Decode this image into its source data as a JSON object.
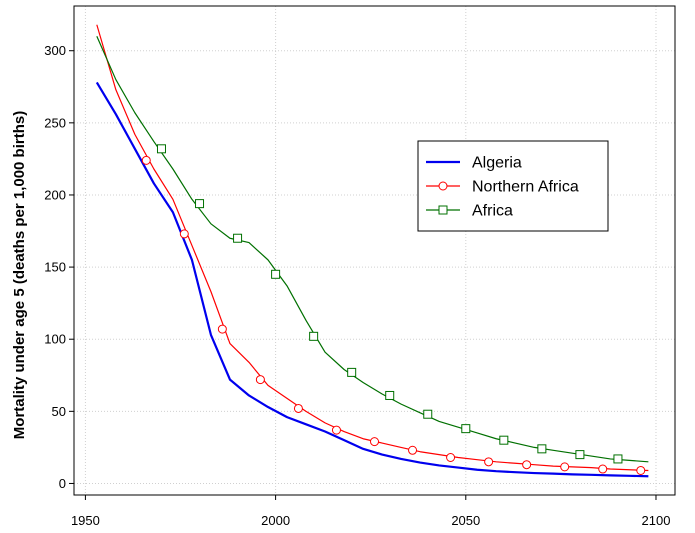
{
  "chart_data": {
    "type": "line",
    "title": "",
    "xlabel": "",
    "ylabel": "Mortality under age 5 (deaths per 1,000 births)",
    "xlim": [
      1947,
      2105
    ],
    "ylim": [
      -8,
      331
    ],
    "x_ticks": [
      1950,
      2000,
      2050,
      2100
    ],
    "y_ticks": [
      0,
      50,
      100,
      150,
      200,
      250,
      300
    ],
    "grid": true,
    "legend_position": "right",
    "series": [
      {
        "name": "Algeria",
        "color": "#0000ee",
        "marker": "none",
        "x": [
          1953,
          1958,
          1963,
          1968,
          1973,
          1978,
          1983,
          1988,
          1993,
          1998,
          2003,
          2008,
          2013,
          2018,
          2023,
          2028,
          2033,
          2038,
          2043,
          2048,
          2053,
          2058,
          2063,
          2068,
          2073,
          2078,
          2083,
          2088,
          2093,
          2098
        ],
        "values": [
          278,
          256,
          232,
          208,
          188,
          155,
          103,
          72,
          61,
          53,
          46,
          41,
          36,
          30,
          24,
          20,
          17,
          14.5,
          12.5,
          11,
          9.5,
          8.5,
          7.8,
          7.2,
          6.8,
          6.3,
          6,
          5.6,
          5.3,
          5
        ]
      },
      {
        "name": "Northern Africa",
        "color": "#ff0000",
        "marker": "circle",
        "x": [
          1953,
          1958,
          1963,
          1968,
          1973,
          1978,
          1983,
          1988,
          1993,
          1998,
          2003,
          2008,
          2013,
          2018,
          2023,
          2028,
          2033,
          2038,
          2043,
          2048,
          2053,
          2058,
          2063,
          2068,
          2073,
          2078,
          2083,
          2088,
          2093,
          2098
        ],
        "values": [
          318,
          273,
          242,
          218,
          197,
          165,
          133,
          97,
          84,
          68,
          59,
          50,
          42,
          36,
          31,
          28,
          25,
          22,
          20,
          18,
          16.5,
          15,
          14,
          13,
          12,
          11.5,
          11,
          10,
          9.5,
          9
        ],
        "marker_x": [
          1966,
          1976,
          1986,
          1996,
          2006,
          2016,
          2026,
          2036,
          2046,
          2056,
          2066,
          2076,
          2086,
          2096
        ],
        "marker_values": [
          224,
          173,
          107,
          72,
          52,
          37,
          29,
          23,
          18,
          15,
          13,
          11.5,
          10,
          9
        ]
      },
      {
        "name": "Africa",
        "color": "#007000",
        "marker": "square",
        "x": [
          1953,
          1958,
          1963,
          1968,
          1973,
          1978,
          1983,
          1988,
          1993,
          1998,
          2003,
          2008,
          2013,
          2018,
          2023,
          2028,
          2033,
          2038,
          2043,
          2048,
          2053,
          2058,
          2063,
          2068,
          2073,
          2078,
          2083,
          2088,
          2093,
          2098
        ],
        "values": [
          310,
          280,
          257,
          237,
          218,
          197,
          180,
          170,
          167,
          155,
          137,
          113,
          91,
          79,
          70,
          62,
          55,
          49,
          43,
          39,
          35,
          31,
          28,
          25,
          23,
          21,
          19,
          17,
          16,
          15
        ],
        "marker_x": [
          1970,
          1980,
          1990,
          2000,
          2010,
          2020,
          2030,
          2040,
          2050,
          2060,
          2070,
          2080,
          2090
        ],
        "marker_values": [
          232,
          194,
          170,
          145,
          102,
          77,
          61,
          48,
          38,
          30,
          24,
          20,
          17
        ]
      }
    ]
  }
}
